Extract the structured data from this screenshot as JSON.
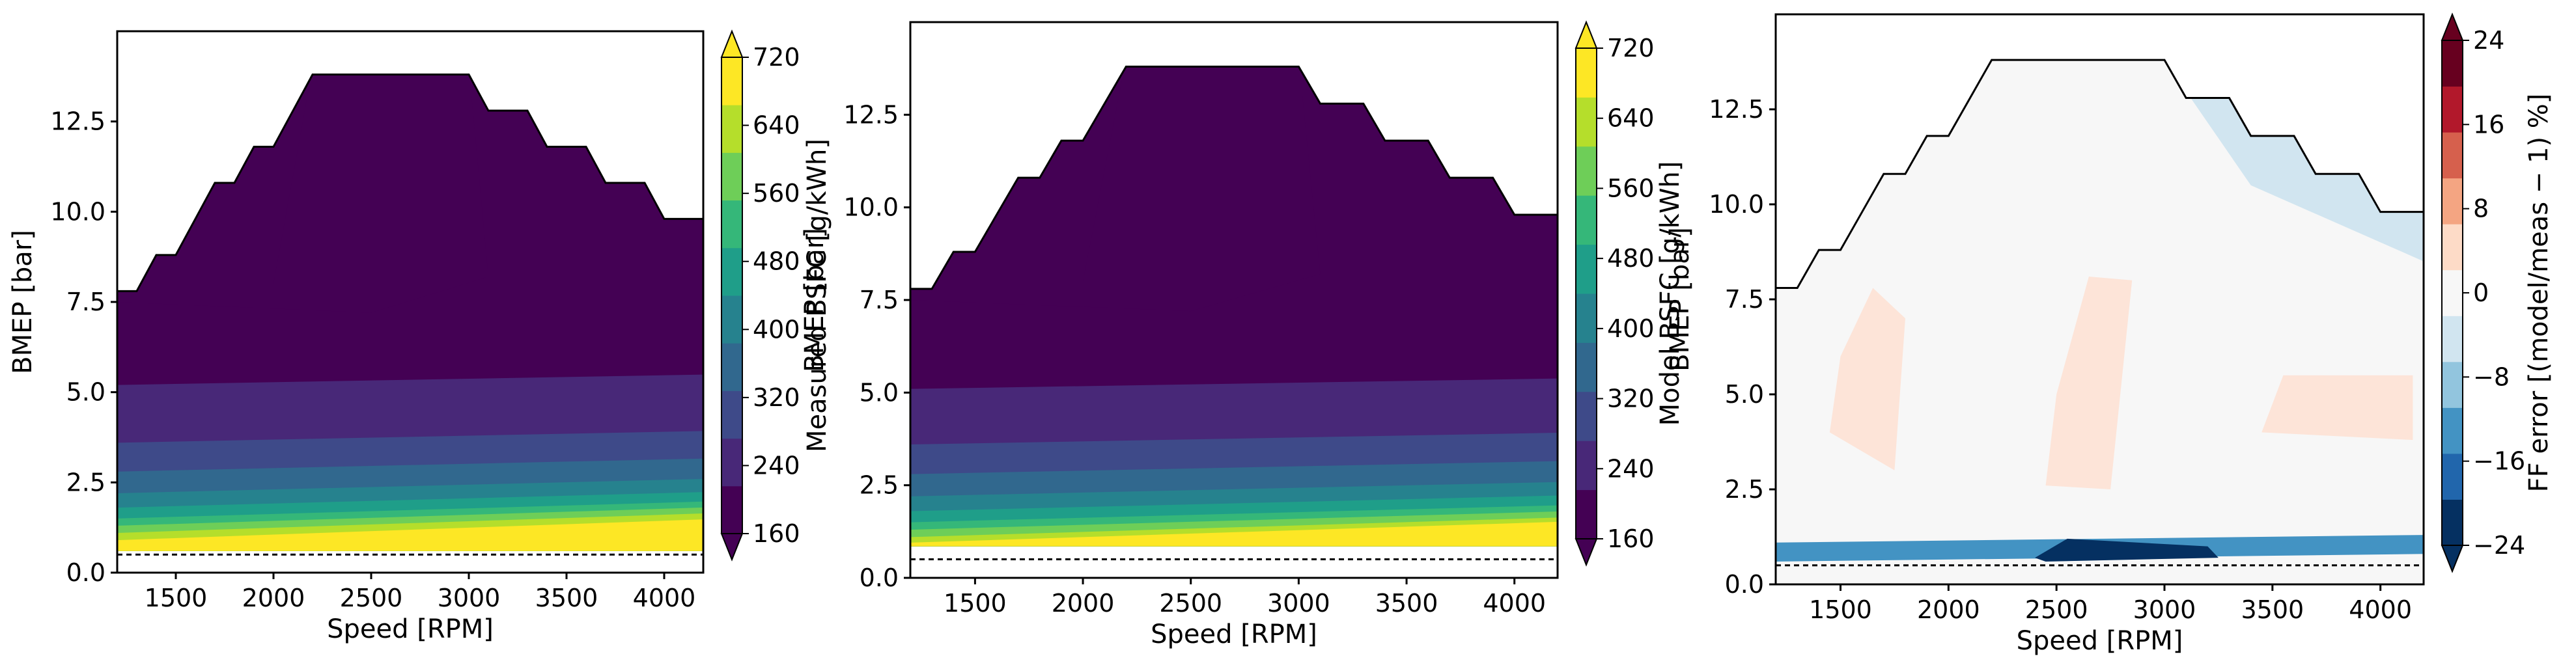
{
  "figure": {
    "colors": {
      "viridis": [
        "#440154",
        "#482878",
        "#3e4a89",
        "#31688e",
        "#26828e",
        "#1f9e89",
        "#35b779",
        "#6ece58",
        "#b5de2b",
        "#fde725"
      ],
      "rdbu_neg": [
        "#053061",
        "#2166ac",
        "#4393c3",
        "#92c5de",
        "#d1e5f0"
      ],
      "rdbu_pos": [
        "#fddbc7",
        "#f4a582",
        "#d6604d",
        "#b2182b",
        "#67001f"
      ]
    }
  },
  "chart_data": [
    {
      "type": "heatmap",
      "name": "measured-bsfc",
      "xlabel": "Speed [RPM]",
      "ylabel": "BMEP [bar]",
      "xlim": [
        1200,
        4200
      ],
      "ylim": [
        0,
        15
      ],
      "xticks": [
        "1500",
        "2000",
        "2500",
        "3000",
        "3500",
        "4000"
      ],
      "xtick_values": [
        1500,
        2000,
        2500,
        3000,
        3500,
        4000
      ],
      "yticks": [
        "0.0",
        "2.5",
        "5.0",
        "7.5",
        "10.0",
        "12.5"
      ],
      "ytick_values": [
        0,
        2.5,
        5.0,
        7.5,
        10.0,
        12.5
      ],
      "colormap": "viridis",
      "colorbar": {
        "label": "Measured BSFC [g/kWh]",
        "ticks": [
          "160",
          "240",
          "320",
          "400",
          "480",
          "560",
          "640",
          "720"
        ],
        "tick_values": [
          160,
          240,
          320,
          400,
          480,
          560,
          640,
          720
        ],
        "range": [
          160,
          720
        ],
        "extend": "both"
      },
      "boundary": {
        "rpm": [
          1200,
          1300,
          1400,
          1500,
          1600,
          1700,
          1800,
          1900,
          2000,
          2100,
          2200,
          2300,
          2400,
          2500,
          2600,
          2700,
          2800,
          2900,
          3000,
          3100,
          3200,
          3300,
          3400,
          3500,
          3600,
          3700,
          3800,
          3900,
          4000,
          4100,
          4200
        ],
        "bmep": [
          7.8,
          7.8,
          8.8,
          8.8,
          9.8,
          10.8,
          10.8,
          11.8,
          11.8,
          12.8,
          13.8,
          13.8,
          13.8,
          13.8,
          13.8,
          13.8,
          13.8,
          13.8,
          13.8,
          12.8,
          12.8,
          12.8,
          11.8,
          11.8,
          11.8,
          10.8,
          10.8,
          10.8,
          9.8,
          9.8,
          9.8
        ]
      },
      "min_load_line": 0.5,
      "contour_bmep_levels": [
        8.0,
        5.2,
        3.6,
        2.8,
        2.2,
        1.8,
        1.5,
        1.3,
        1.1,
        0.9
      ],
      "contour_bsfc_levels": [
        220,
        245,
        265,
        290,
        320,
        360,
        410,
        470,
        560,
        700
      ],
      "lowest_data_bmep": 0.6
    },
    {
      "type": "heatmap",
      "name": "model-bsfc",
      "xlabel": "Speed [RPM]",
      "ylabel": "BMEP [bar]",
      "xlim": [
        1200,
        4200
      ],
      "ylim": [
        0,
        15
      ],
      "xticks": [
        "1500",
        "2000",
        "2500",
        "3000",
        "3500",
        "4000"
      ],
      "xtick_values": [
        1500,
        2000,
        2500,
        3000,
        3500,
        4000
      ],
      "yticks": [
        "0.0",
        "2.5",
        "5.0",
        "7.5",
        "10.0",
        "12.5"
      ],
      "ytick_values": [
        0,
        2.5,
        5.0,
        7.5,
        10.0,
        12.5
      ],
      "colormap": "viridis",
      "colorbar": {
        "label": "Model BSFC [g/kWh]",
        "ticks": [
          "160",
          "240",
          "320",
          "400",
          "480",
          "560",
          "640",
          "720"
        ],
        "tick_values": [
          160,
          240,
          320,
          400,
          480,
          560,
          640,
          720
        ],
        "range": [
          160,
          720
        ],
        "extend": "both"
      },
      "boundary": {
        "rpm": [
          1200,
          1300,
          1400,
          1500,
          1600,
          1700,
          1800,
          1900,
          2000,
          2100,
          2200,
          2300,
          2400,
          2500,
          2600,
          2700,
          2800,
          2900,
          3000,
          3100,
          3200,
          3300,
          3400,
          3500,
          3600,
          3700,
          3800,
          3900,
          4000,
          4100,
          4200
        ],
        "bmep": [
          7.8,
          7.8,
          8.8,
          8.8,
          9.8,
          10.8,
          10.8,
          11.8,
          11.8,
          12.8,
          13.8,
          13.8,
          13.8,
          13.8,
          13.8,
          13.8,
          13.8,
          13.8,
          13.8,
          12.8,
          12.8,
          12.8,
          11.8,
          11.8,
          11.8,
          10.8,
          10.8,
          10.8,
          9.8,
          9.8,
          9.8
        ]
      },
      "min_load_line": 0.5,
      "contour_bmep_levels": [
        8.0,
        5.1,
        3.6,
        2.8,
        2.2,
        1.8,
        1.5,
        1.3,
        1.1,
        0.95
      ],
      "contour_bsfc_levels": [
        220,
        245,
        265,
        290,
        320,
        360,
        410,
        470,
        560,
        700
      ],
      "lowest_data_bmep": 0.85
    },
    {
      "type": "heatmap",
      "name": "ff-error",
      "xlabel": "Speed [RPM]",
      "ylabel": "BMEP [bar]",
      "xlim": [
        1200,
        4200
      ],
      "ylim": [
        0,
        15
      ],
      "xticks": [
        "1500",
        "2000",
        "2500",
        "3000",
        "3500",
        "4000"
      ],
      "xtick_values": [
        1500,
        2000,
        2500,
        3000,
        3500,
        4000
      ],
      "yticks": [
        "0.0",
        "2.5",
        "5.0",
        "7.5",
        "10.0",
        "12.5"
      ],
      "ytick_values": [
        0,
        2.5,
        5.0,
        7.5,
        10.0,
        12.5
      ],
      "colormap": "RdBu_r",
      "colorbar": {
        "label": "FF error  [(model/meas − 1) %]",
        "ticks": [
          "−24",
          "−16",
          "−8",
          "0",
          "8",
          "16",
          "24"
        ],
        "tick_values": [
          -24,
          -16,
          -8,
          0,
          8,
          16,
          24
        ],
        "range": [
          -24,
          24
        ],
        "extend": "both"
      },
      "boundary": {
        "rpm": [
          1200,
          1300,
          1400,
          1500,
          1600,
          1700,
          1800,
          1900,
          2000,
          2100,
          2200,
          2300,
          2400,
          2500,
          2600,
          2700,
          2800,
          2900,
          3000,
          3100,
          3200,
          3300,
          3400,
          3500,
          3600,
          3700,
          3800,
          3900,
          4000,
          4100,
          4200
        ],
        "bmep": [
          7.8,
          7.8,
          8.8,
          8.8,
          9.8,
          10.8,
          10.8,
          11.8,
          11.8,
          12.8,
          13.8,
          13.8,
          13.8,
          13.8,
          13.8,
          13.8,
          13.8,
          13.8,
          13.8,
          12.8,
          12.8,
          12.8,
          11.8,
          11.8,
          11.8,
          10.8,
          10.8,
          10.8,
          9.8,
          9.8,
          9.8
        ]
      },
      "min_load_line": 0.5,
      "error_regions": [
        {
          "error_pct": 1,
          "rpm": [
            1450,
            1750,
            1800,
            1650,
            1500
          ],
          "bmep": [
            4.0,
            3.0,
            7.0,
            7.8,
            6.0
          ]
        },
        {
          "error_pct": 1,
          "rpm": [
            2450,
            2750,
            2850,
            2650,
            2500
          ],
          "bmep": [
            2.6,
            2.5,
            8.0,
            8.1,
            5.0
          ]
        },
        {
          "error_pct": 1,
          "rpm": [
            3450,
            4150,
            4150,
            3550
          ],
          "bmep": [
            4.0,
            3.8,
            5.5,
            5.5
          ]
        },
        {
          "error_pct": -3,
          "rpm": [
            3000,
            4200,
            4200,
            3400
          ],
          "bmep": [
            13.8,
            10.0,
            8.5,
            10.5
          ]
        },
        {
          "error_pct": -10,
          "rpm": [
            1200,
            4200,
            4200,
            1200
          ],
          "bmep": [
            1.1,
            1.3,
            0.8,
            0.6
          ]
        },
        {
          "error_pct": -22,
          "rpm": [
            2400,
            2550,
            3200,
            3250,
            2450
          ],
          "bmep": [
            0.7,
            1.2,
            1.0,
            0.7,
            0.6
          ]
        }
      ]
    }
  ]
}
